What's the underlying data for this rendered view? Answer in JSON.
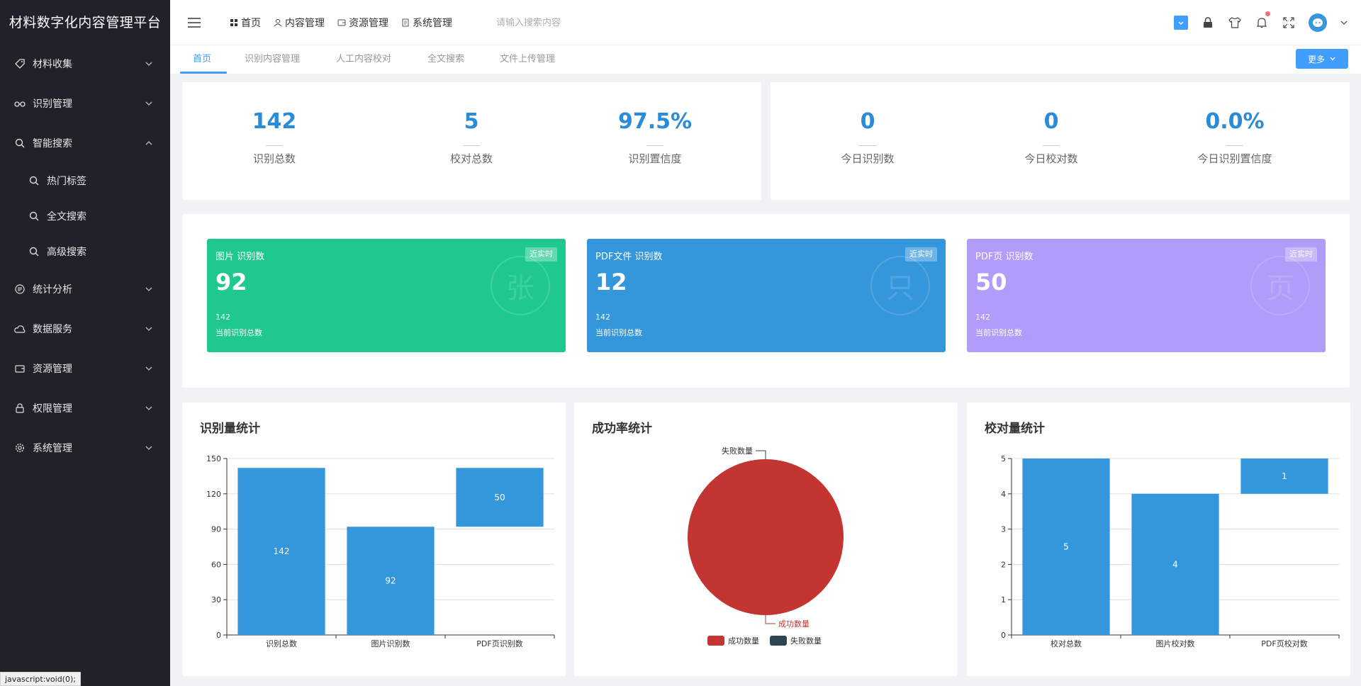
{
  "sidebar": {
    "brand": "材料数字化内容管理平台",
    "menu": [
      {
        "label": "材料收集",
        "icon": "tag-icon"
      },
      {
        "label": "识别管理",
        "icon": "glasses-icon"
      },
      {
        "label": "智能搜索",
        "icon": "search-icon",
        "expanded": true
      }
    ],
    "submenu": [
      {
        "label": "热门标签",
        "icon": "search-icon"
      },
      {
        "label": "全文搜索",
        "icon": "search-icon"
      },
      {
        "label": "高级搜索",
        "icon": "search-icon"
      }
    ],
    "menu2": [
      {
        "label": "统计分析",
        "icon": "chart-icon"
      },
      {
        "label": "数据服务",
        "icon": "cloud-icon"
      },
      {
        "label": "资源管理",
        "icon": "wallet-icon"
      },
      {
        "label": "权限管理",
        "icon": "lock-icon"
      },
      {
        "label": "系统管理",
        "icon": "gear-icon"
      }
    ]
  },
  "topbar": {
    "nav": [
      "首页",
      "内容管理",
      "资源管理",
      "系统管理"
    ],
    "search_placeholder": "请输入搜索内容"
  },
  "tabs": {
    "items": [
      "首页",
      "识别内容管理",
      "人工内容校对",
      "全文搜索",
      "文件上传管理"
    ],
    "active": 0,
    "more_label": "更多"
  },
  "stats_left": [
    {
      "value": "142",
      "label": "识别总数"
    },
    {
      "value": "5",
      "label": "校对总数"
    },
    {
      "value": "97.5%",
      "label": "识别置信度"
    }
  ],
  "stats_right": [
    {
      "value": "0",
      "label": "今日识别数"
    },
    {
      "value": "0",
      "label": "今日校对数"
    },
    {
      "value": "0.0%",
      "label": "今日识别置信度"
    }
  ],
  "tiles": [
    {
      "title": "图片 识别数",
      "badge": "近实时",
      "value": "92",
      "sub_value": "142",
      "sub_label": "当前识别总数",
      "color": "#1fc98b",
      "glyph": "张"
    },
    {
      "title": "PDF文件 识别数",
      "badge": "近实时",
      "value": "12",
      "sub_value": "142",
      "sub_label": "当前识别总数",
      "color": "#3496db",
      "glyph": "只"
    },
    {
      "title": "PDF页 识别数",
      "badge": "近实时",
      "value": "50",
      "sub_value": "142",
      "sub_label": "当前识别总数",
      "color": "#b19cf9",
      "glyph": "页"
    }
  ],
  "chart_data": [
    {
      "type": "bar",
      "title": "识别量统计",
      "categories": [
        "识别总数",
        "图片识别数",
        "PDF页识别数"
      ],
      "values": [
        142,
        92,
        50
      ],
      "bar_ranges": [
        [
          0,
          142
        ],
        [
          0,
          92
        ],
        [
          92,
          142
        ]
      ],
      "ylim": [
        0,
        150
      ],
      "yticks": [
        0,
        30,
        60,
        90,
        120,
        150
      ],
      "color": "#3496db",
      "grid": true
    },
    {
      "type": "pie",
      "title": "成功率统计",
      "slices": [
        {
          "name": "成功数量",
          "value": 142,
          "color": "#c23531"
        },
        {
          "name": "失败数量",
          "value": 0,
          "color": "#2f4554"
        }
      ],
      "legend": "bottom"
    },
    {
      "type": "bar",
      "title": "校对量统计",
      "categories": [
        "校对总数",
        "图片校对数",
        "PDF页校对数"
      ],
      "values": [
        5,
        4,
        1
      ],
      "bar_ranges": [
        [
          0,
          5
        ],
        [
          0,
          4
        ],
        [
          4,
          5
        ]
      ],
      "ylim": [
        0,
        5
      ],
      "yticks": [
        0,
        1,
        2,
        3,
        4,
        5
      ],
      "color": "#3496db",
      "grid": true
    }
  ],
  "status_tip": "javascript:void(0);"
}
